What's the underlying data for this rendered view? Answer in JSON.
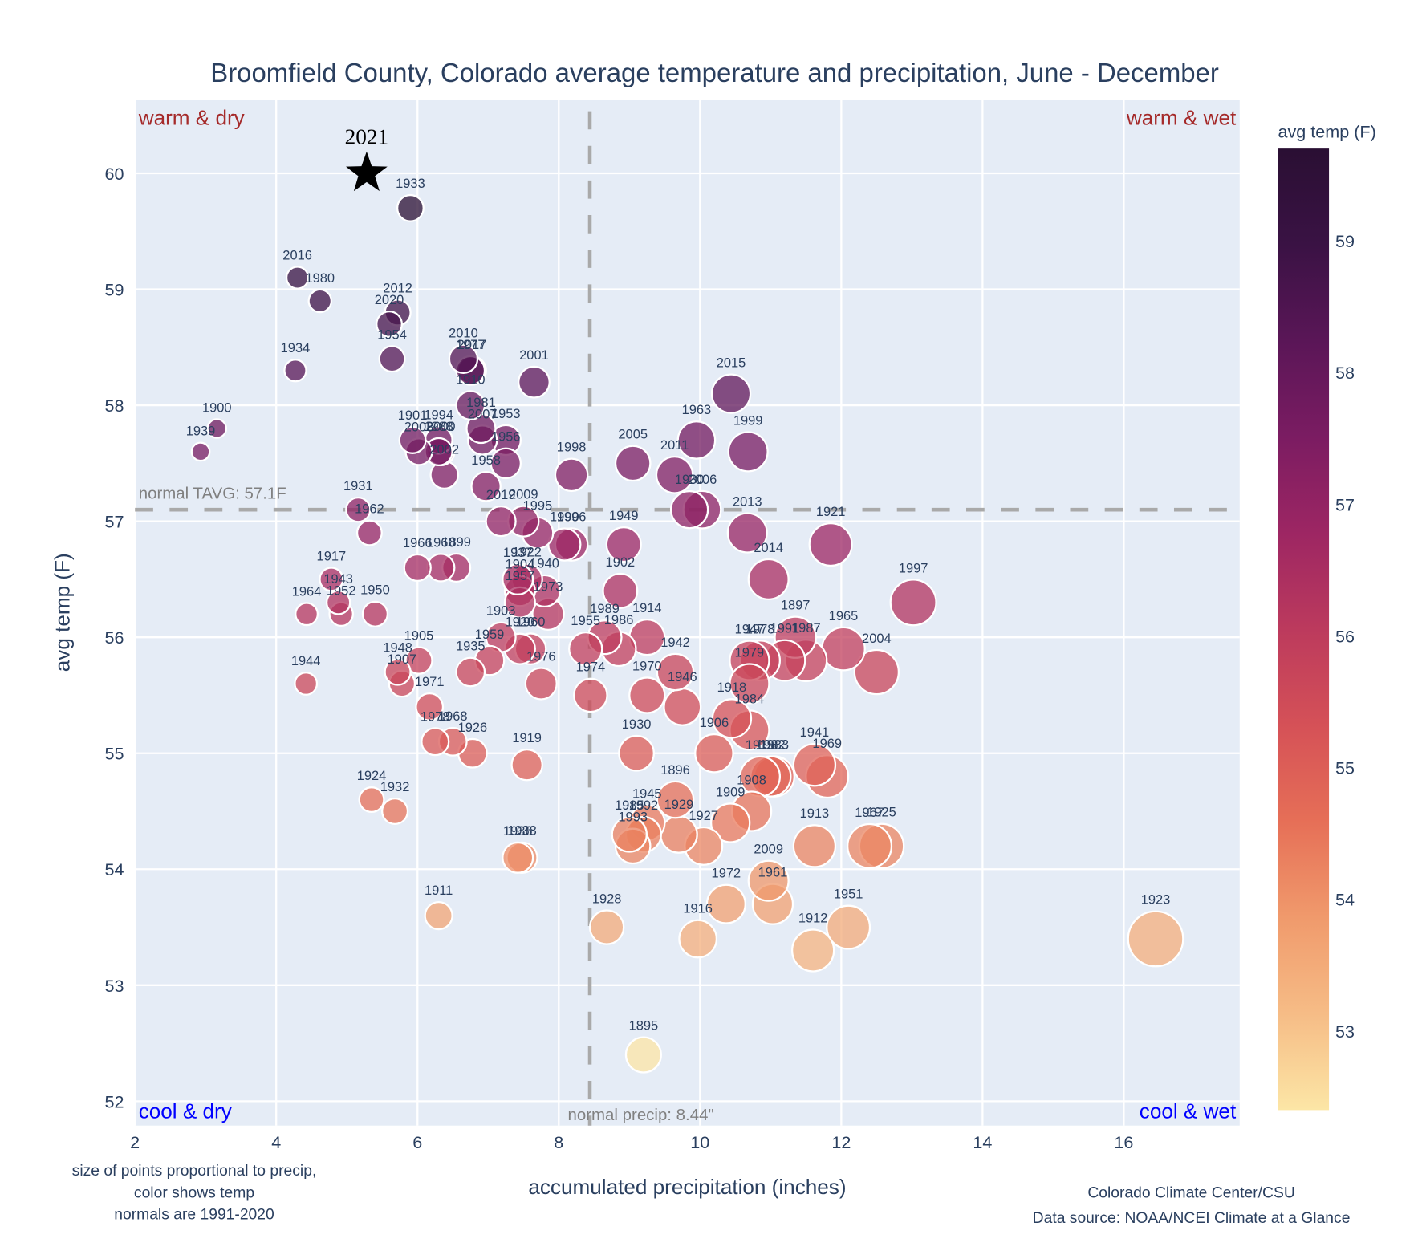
{
  "chart_data": {
    "type": "scatter",
    "title": "Broomfield County, Colorado average temperature and precipitation, June - December",
    "xlabel": "accumulated precipitation (inches)",
    "ylabel": "avg temp (F)",
    "xlim": [
      2.0,
      17.64
    ],
    "ylim": [
      51.79,
      60.63
    ],
    "xticks": [
      2,
      4,
      6,
      8,
      10,
      12,
      14,
      16
    ],
    "yticks": [
      52,
      53,
      54,
      55,
      56,
      57,
      58,
      59,
      60
    ],
    "grid": true,
    "size_encoding": "precip",
    "color_encoding": "temp",
    "colorbar": {
      "title": "avg temp (F)",
      "range": [
        52.4,
        59.7
      ],
      "ticks": [
        53,
        54,
        55,
        56,
        57,
        58,
        59
      ],
      "colors": [
        "#fce6a6",
        "#f6bc86",
        "#f09a6c",
        "#e66f57",
        "#d55157",
        "#bc3a5d",
        "#9d2663",
        "#7b1c62",
        "#5a1657",
        "#3a1244",
        "#2a0f33"
      ]
    },
    "reference_lines": {
      "normal_temp": 57.1,
      "normal_temp_label": "normal TAVG: 57.1F",
      "normal_precip": 8.44,
      "normal_precip_label": "normal precip: 8.44\""
    },
    "quadrant_labels": {
      "top_left": "warm & dry",
      "top_right": "warm & wet",
      "bottom_left": "cool & dry",
      "bottom_right": "cool & wet"
    },
    "highlight": {
      "year": "2021",
      "precip": 5.28,
      "temp": 60.0,
      "marker": "star"
    },
    "points": [
      {
        "year": "1933",
        "precip": 5.9,
        "temp": 59.7
      },
      {
        "year": "2016",
        "precip": 4.3,
        "temp": 59.1
      },
      {
        "year": "1980",
        "precip": 4.62,
        "temp": 58.9
      },
      {
        "year": "2012",
        "precip": 5.72,
        "temp": 58.8
      },
      {
        "year": "2020",
        "precip": 5.6,
        "temp": 58.7
      },
      {
        "year": "1954",
        "precip": 5.64,
        "temp": 58.4
      },
      {
        "year": "1934",
        "precip": 4.27,
        "temp": 58.3
      },
      {
        "year": "2010",
        "precip": 6.65,
        "temp": 58.4
      },
      {
        "year": "2017",
        "precip": 6.77,
        "temp": 58.3
      },
      {
        "year": "1977",
        "precip": 6.75,
        "temp": 58.3
      },
      {
        "year": "2001",
        "precip": 7.65,
        "temp": 58.2
      },
      {
        "year": "1900",
        "precip": 3.16,
        "temp": 57.8
      },
      {
        "year": "1939",
        "precip": 2.93,
        "temp": 57.6
      },
      {
        "year": "1910",
        "precip": 6.75,
        "temp": 58.0
      },
      {
        "year": "1981",
        "precip": 6.9,
        "temp": 57.8
      },
      {
        "year": "2007",
        "precip": 6.92,
        "temp": 57.7
      },
      {
        "year": "1953",
        "precip": 7.25,
        "temp": 57.7
      },
      {
        "year": "1901",
        "precip": 5.93,
        "temp": 57.7
      },
      {
        "year": "1994",
        "precip": 6.3,
        "temp": 57.7
      },
      {
        "year": "2003",
        "precip": 6.02,
        "temp": 57.6
      },
      {
        "year": "1988",
        "precip": 6.3,
        "temp": 57.6
      },
      {
        "year": "2000",
        "precip": 6.33,
        "temp": 57.6
      },
      {
        "year": "2002",
        "precip": 6.38,
        "temp": 57.4
      },
      {
        "year": "1956",
        "precip": 7.25,
        "temp": 57.5
      },
      {
        "year": "1958",
        "precip": 6.97,
        "temp": 57.3
      },
      {
        "year": "2019",
        "precip": 7.18,
        "temp": 57.0
      },
      {
        "year": "2009",
        "precip": 7.5,
        "temp": 57.0
      },
      {
        "year": "1995",
        "precip": 7.7,
        "temp": 56.9
      },
      {
        "year": "1990",
        "precip": 8.08,
        "temp": 56.8
      },
      {
        "year": "1996",
        "precip": 8.18,
        "temp": 56.8
      },
      {
        "year": "1998",
        "precip": 8.18,
        "temp": 57.4
      },
      {
        "year": "1931",
        "precip": 5.16,
        "temp": 57.1
      },
      {
        "year": "1962",
        "precip": 5.32,
        "temp": 56.9
      },
      {
        "year": "1966",
        "precip": 6.0,
        "temp": 56.6
      },
      {
        "year": "1960",
        "precip": 6.33,
        "temp": 56.6
      },
      {
        "year": "1899",
        "precip": 6.55,
        "temp": 56.6
      },
      {
        "year": "1917",
        "precip": 4.78,
        "temp": 56.5
      },
      {
        "year": "1943",
        "precip": 4.88,
        "temp": 56.3
      },
      {
        "year": "1964",
        "precip": 4.43,
        "temp": 56.2
      },
      {
        "year": "1952",
        "precip": 4.92,
        "temp": 56.2
      },
      {
        "year": "1950",
        "precip": 5.4,
        "temp": 56.2
      },
      {
        "year": "1937",
        "precip": 7.42,
        "temp": 56.5
      },
      {
        "year": "1922",
        "precip": 7.55,
        "temp": 56.5
      },
      {
        "year": "1904",
        "precip": 7.45,
        "temp": 56.4
      },
      {
        "year": "1940",
        "precip": 7.8,
        "temp": 56.4
      },
      {
        "year": "1957",
        "precip": 7.45,
        "temp": 56.3
      },
      {
        "year": "1973",
        "precip": 7.85,
        "temp": 56.2
      },
      {
        "year": "1903",
        "precip": 7.18,
        "temp": 56.0
      },
      {
        "year": "1920",
        "precip": 7.45,
        "temp": 55.9
      },
      {
        "year": "1960b",
        "precip": 7.6,
        "temp": 55.9
      },
      {
        "year": "1959",
        "precip": 7.02,
        "temp": 55.8
      },
      {
        "year": "1935",
        "precip": 6.75,
        "temp": 55.7
      },
      {
        "year": "1976",
        "precip": 7.75,
        "temp": 55.6
      },
      {
        "year": "1905",
        "precip": 6.02,
        "temp": 55.8
      },
      {
        "year": "1948",
        "precip": 5.72,
        "temp": 55.7
      },
      {
        "year": "1907",
        "precip": 5.78,
        "temp": 55.6
      },
      {
        "year": "1971",
        "precip": 6.17,
        "temp": 55.4
      },
      {
        "year": "1944",
        "precip": 4.42,
        "temp": 55.6
      },
      {
        "year": "1978",
        "precip": 6.25,
        "temp": 55.1
      },
      {
        "year": "1968",
        "precip": 6.5,
        "temp": 55.1
      },
      {
        "year": "1926",
        "precip": 6.78,
        "temp": 55.0
      },
      {
        "year": "1924",
        "precip": 5.35,
        "temp": 54.6
      },
      {
        "year": "1932",
        "precip": 5.68,
        "temp": 54.5
      },
      {
        "year": "1919",
        "precip": 7.55,
        "temp": 54.9
      },
      {
        "year": "1936",
        "precip": 7.42,
        "temp": 54.1
      },
      {
        "year": "1938",
        "precip": 7.48,
        "temp": 54.1
      },
      {
        "year": "1911",
        "precip": 6.3,
        "temp": 53.6
      },
      {
        "year": "2005",
        "precip": 9.05,
        "temp": 57.5
      },
      {
        "year": "1949",
        "precip": 8.92,
        "temp": 56.8
      },
      {
        "year": "1902",
        "precip": 8.87,
        "temp": 56.4
      },
      {
        "year": "1989",
        "precip": 8.65,
        "temp": 56.0
      },
      {
        "year": "1955",
        "precip": 8.38,
        "temp": 55.9
      },
      {
        "year": "1986",
        "precip": 8.85,
        "temp": 55.9
      },
      {
        "year": "1914",
        "precip": 9.25,
        "temp": 56.0
      },
      {
        "year": "1974",
        "precip": 8.45,
        "temp": 55.5
      },
      {
        "year": "1970",
        "precip": 9.25,
        "temp": 55.5
      },
      {
        "year": "1942",
        "precip": 9.65,
        "temp": 55.7
      },
      {
        "year": "1946",
        "precip": 9.75,
        "temp": 55.4
      },
      {
        "year": "1930",
        "precip": 9.1,
        "temp": 55.0
      },
      {
        "year": "1896",
        "precip": 9.65,
        "temp": 54.6
      },
      {
        "year": "1945",
        "precip": 9.25,
        "temp": 54.4
      },
      {
        "year": "1985",
        "precip": 9.0,
        "temp": 54.3
      },
      {
        "year": "1992",
        "precip": 9.2,
        "temp": 54.3
      },
      {
        "year": "1993",
        "precip": 9.05,
        "temp": 54.2
      },
      {
        "year": "1929",
        "precip": 9.7,
        "temp": 54.3
      },
      {
        "year": "1927",
        "precip": 10.05,
        "temp": 54.2
      },
      {
        "year": "1928",
        "precip": 8.68,
        "temp": 53.5
      },
      {
        "year": "1895",
        "precip": 9.2,
        "temp": 52.4
      },
      {
        "year": "1916",
        "precip": 9.97,
        "temp": 53.4
      },
      {
        "year": "1972",
        "precip": 10.37,
        "temp": 53.7
      },
      {
        "year": "2015",
        "precip": 10.44,
        "temp": 58.1
      },
      {
        "year": "1963",
        "precip": 9.95,
        "temp": 57.7
      },
      {
        "year": "1999",
        "precip": 10.68,
        "temp": 57.6
      },
      {
        "year": "2011",
        "precip": 9.64,
        "temp": 57.4
      },
      {
        "year": "1930b",
        "precip": 9.85,
        "temp": 57.1
      },
      {
        "year": "2006",
        "precip": 10.03,
        "temp": 57.1
      },
      {
        "year": "2013",
        "precip": 10.67,
        "temp": 56.9
      },
      {
        "year": "2014",
        "precip": 10.97,
        "temp": 56.5
      },
      {
        "year": "1921",
        "precip": 11.85,
        "temp": 56.8
      },
      {
        "year": "1997",
        "precip": 13.02,
        "temp": 56.3
      },
      {
        "year": "1897",
        "precip": 11.35,
        "temp": 56.0
      },
      {
        "year": "1947",
        "precip": 10.7,
        "temp": 55.8
      },
      {
        "year": "1978b",
        "precip": 10.85,
        "temp": 55.8
      },
      {
        "year": "1991",
        "precip": 11.2,
        "temp": 55.8
      },
      {
        "year": "1987",
        "precip": 11.5,
        "temp": 55.8
      },
      {
        "year": "1965",
        "precip": 12.03,
        "temp": 55.9
      },
      {
        "year": "2004",
        "precip": 12.5,
        "temp": 55.7
      },
      {
        "year": "1979",
        "precip": 10.7,
        "temp": 55.6
      },
      {
        "year": "1918",
        "precip": 10.45,
        "temp": 55.3
      },
      {
        "year": "1984",
        "precip": 10.7,
        "temp": 55.2
      },
      {
        "year": "1906",
        "precip": 10.2,
        "temp": 55.0
      },
      {
        "year": "1915",
        "precip": 10.85,
        "temp": 54.8
      },
      {
        "year": "1982",
        "precip": 11.0,
        "temp": 54.8
      },
      {
        "year": "1983",
        "precip": 11.05,
        "temp": 54.8
      },
      {
        "year": "1908",
        "precip": 10.73,
        "temp": 54.5
      },
      {
        "year": "1909",
        "precip": 10.43,
        "temp": 54.4
      },
      {
        "year": "1941",
        "precip": 11.62,
        "temp": 54.9
      },
      {
        "year": "1969",
        "precip": 11.8,
        "temp": 54.8
      },
      {
        "year": "1913",
        "precip": 11.62,
        "temp": 54.2
      },
      {
        "year": "1967",
        "precip": 12.4,
        "temp": 54.2
      },
      {
        "year": "1925",
        "precip": 12.57,
        "temp": 54.2
      },
      {
        "year": "2009b",
        "precip": 10.97,
        "temp": 53.9
      },
      {
        "year": "1961",
        "precip": 11.03,
        "temp": 53.7
      },
      {
        "year": "1912",
        "precip": 11.6,
        "temp": 53.3
      },
      {
        "year": "1951",
        "precip": 12.1,
        "temp": 53.5
      },
      {
        "year": "1923",
        "precip": 16.45,
        "temp": 53.4
      }
    ],
    "notes": {
      "left": [
        "size of points proportional to precip,",
        "color shows temp",
        "normals are 1991-2020"
      ],
      "right": [
        "Colorado Climate Center/CSU",
        "Data source: NOAA/NCEI Climate at a Glance"
      ]
    }
  }
}
